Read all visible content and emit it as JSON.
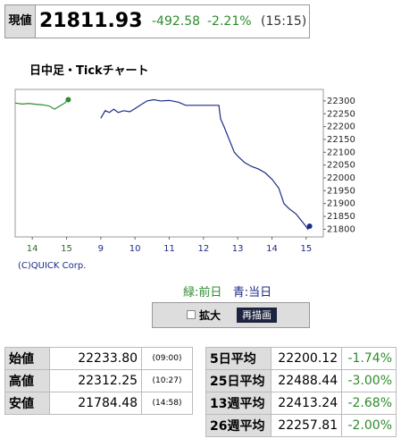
{
  "header": {
    "label": "現値",
    "price": "21811.93",
    "change": "-492.58",
    "change_pct": "-2.21%",
    "time": "(15:15)"
  },
  "chart_data": {
    "type": "line",
    "title": "日中足・Tickチャート",
    "series": [
      {
        "name": "緑:前日",
        "color": "#2e8b2e",
        "x": [
          -0.5,
          -0.3,
          -0.1,
          0.1,
          0.3,
          0.5,
          0.65,
          0.8,
          0.95,
          1.05
        ],
        "values": [
          22292,
          22288,
          22290,
          22287,
          22285,
          22280,
          22268,
          22280,
          22292,
          22305
        ]
      },
      {
        "name": "青:当日",
        "color": "#1c2a88",
        "x": [
          2.0,
          2.13,
          2.25,
          2.38,
          2.51,
          2.67,
          2.85,
          3.0,
          3.17,
          3.35,
          3.55,
          3.75,
          4.0,
          4.27,
          4.48,
          5.45,
          5.5,
          5.6,
          5.75,
          5.9,
          6.0,
          6.2,
          6.4,
          6.6,
          6.8,
          7.0,
          7.2,
          7.35,
          7.5,
          7.7,
          7.85,
          8.0,
          8.05,
          8.1
        ],
        "values": [
          22233,
          22262,
          22255,
          22268,
          22255,
          22262,
          22258,
          22270,
          22285,
          22300,
          22305,
          22300,
          22302,
          22295,
          22283,
          22283,
          22230,
          22200,
          22150,
          22100,
          22085,
          22060,
          22045,
          22035,
          22020,
          21995,
          21960,
          21900,
          21880,
          21860,
          21835,
          21810,
          21800,
          21812
        ]
      }
    ],
    "xlim": [
      -0.5,
      8.5
    ],
    "xticks": [
      {
        "value": 0,
        "label": "14"
      },
      {
        "value": 1,
        "label": "15"
      },
      {
        "value": 2,
        "label": "9"
      },
      {
        "value": 3,
        "label": "10"
      },
      {
        "value": 4,
        "label": "11"
      },
      {
        "value": 5,
        "label": "12"
      },
      {
        "value": 6,
        "label": "13"
      },
      {
        "value": 7,
        "label": "14"
      },
      {
        "value": 8,
        "label": "15"
      }
    ],
    "ylim": [
      21770,
      22345
    ],
    "yticks": [
      21800,
      21850,
      21900,
      21950,
      22000,
      22050,
      22100,
      22150,
      22200,
      22250,
      22300
    ],
    "credit": "(C)QUICK Corp."
  },
  "controls": {
    "zoom": "拡大",
    "redraw": "再描画"
  },
  "left_table": {
    "rows": [
      [
        "始値",
        "22233.80",
        "(09:00)"
      ],
      [
        "高値",
        "22312.25",
        "(10:27)"
      ],
      [
        "安値",
        "21784.48",
        "(14:58)"
      ]
    ]
  },
  "right_table": {
    "rows": [
      [
        "5日平均",
        "22200.12",
        "-1.74%"
      ],
      [
        "25日平均",
        "22488.44",
        "-3.00%"
      ],
      [
        "13週平均",
        "22413.24",
        "-2.68%"
      ],
      [
        "26週平均",
        "22257.81",
        "-2.00%"
      ]
    ]
  }
}
